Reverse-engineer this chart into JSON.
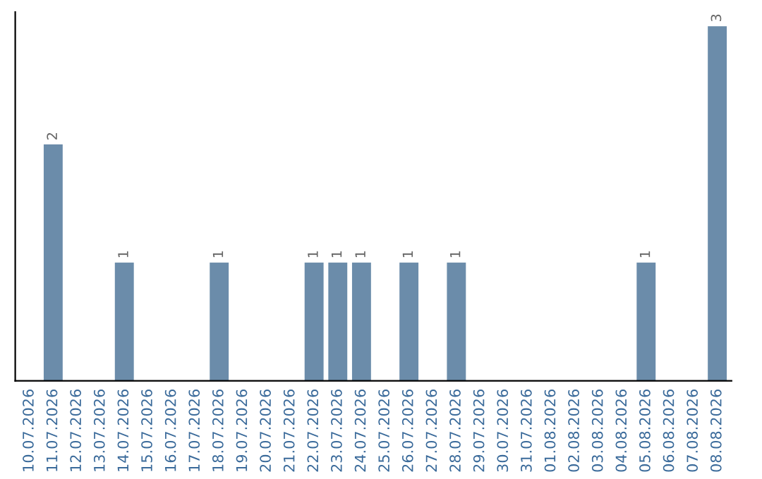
{
  "chart_data": {
    "type": "bar",
    "categories": [
      "10.07.2026",
      "11.07.2026",
      "12.07.2026",
      "13.07.2026",
      "14.07.2026",
      "15.07.2026",
      "16.07.2026",
      "17.07.2026",
      "18.07.2026",
      "19.07.2026",
      "20.07.2026",
      "21.07.2026",
      "22.07.2026",
      "23.07.2026",
      "24.07.2026",
      "25.07.2026",
      "26.07.2026",
      "27.07.2026",
      "28.07.2026",
      "29.07.2026",
      "30.07.2026",
      "31.07.2026",
      "01.08.2026",
      "02.08.2026",
      "03.08.2026",
      "04.08.2026",
      "05.08.2026",
      "06.08.2026",
      "07.08.2026",
      "08.08.2026"
    ],
    "values": [
      0,
      2,
      0,
      0,
      1,
      0,
      0,
      0,
      1,
      0,
      0,
      0,
      1,
      1,
      1,
      0,
      1,
      0,
      1,
      0,
      0,
      0,
      0,
      0,
      0,
      0,
      1,
      0,
      0,
      3
    ],
    "value_labels": [
      null,
      "2",
      null,
      null,
      "1",
      null,
      null,
      null,
      "1",
      null,
      null,
      null,
      "1",
      "1",
      "1",
      null,
      "1",
      null,
      "1",
      null,
      null,
      null,
      null,
      null,
      null,
      null,
      "1",
      null,
      null,
      "3"
    ],
    "color": "#6b8caa",
    "tick_labels": "x",
    "grid": false
  }
}
